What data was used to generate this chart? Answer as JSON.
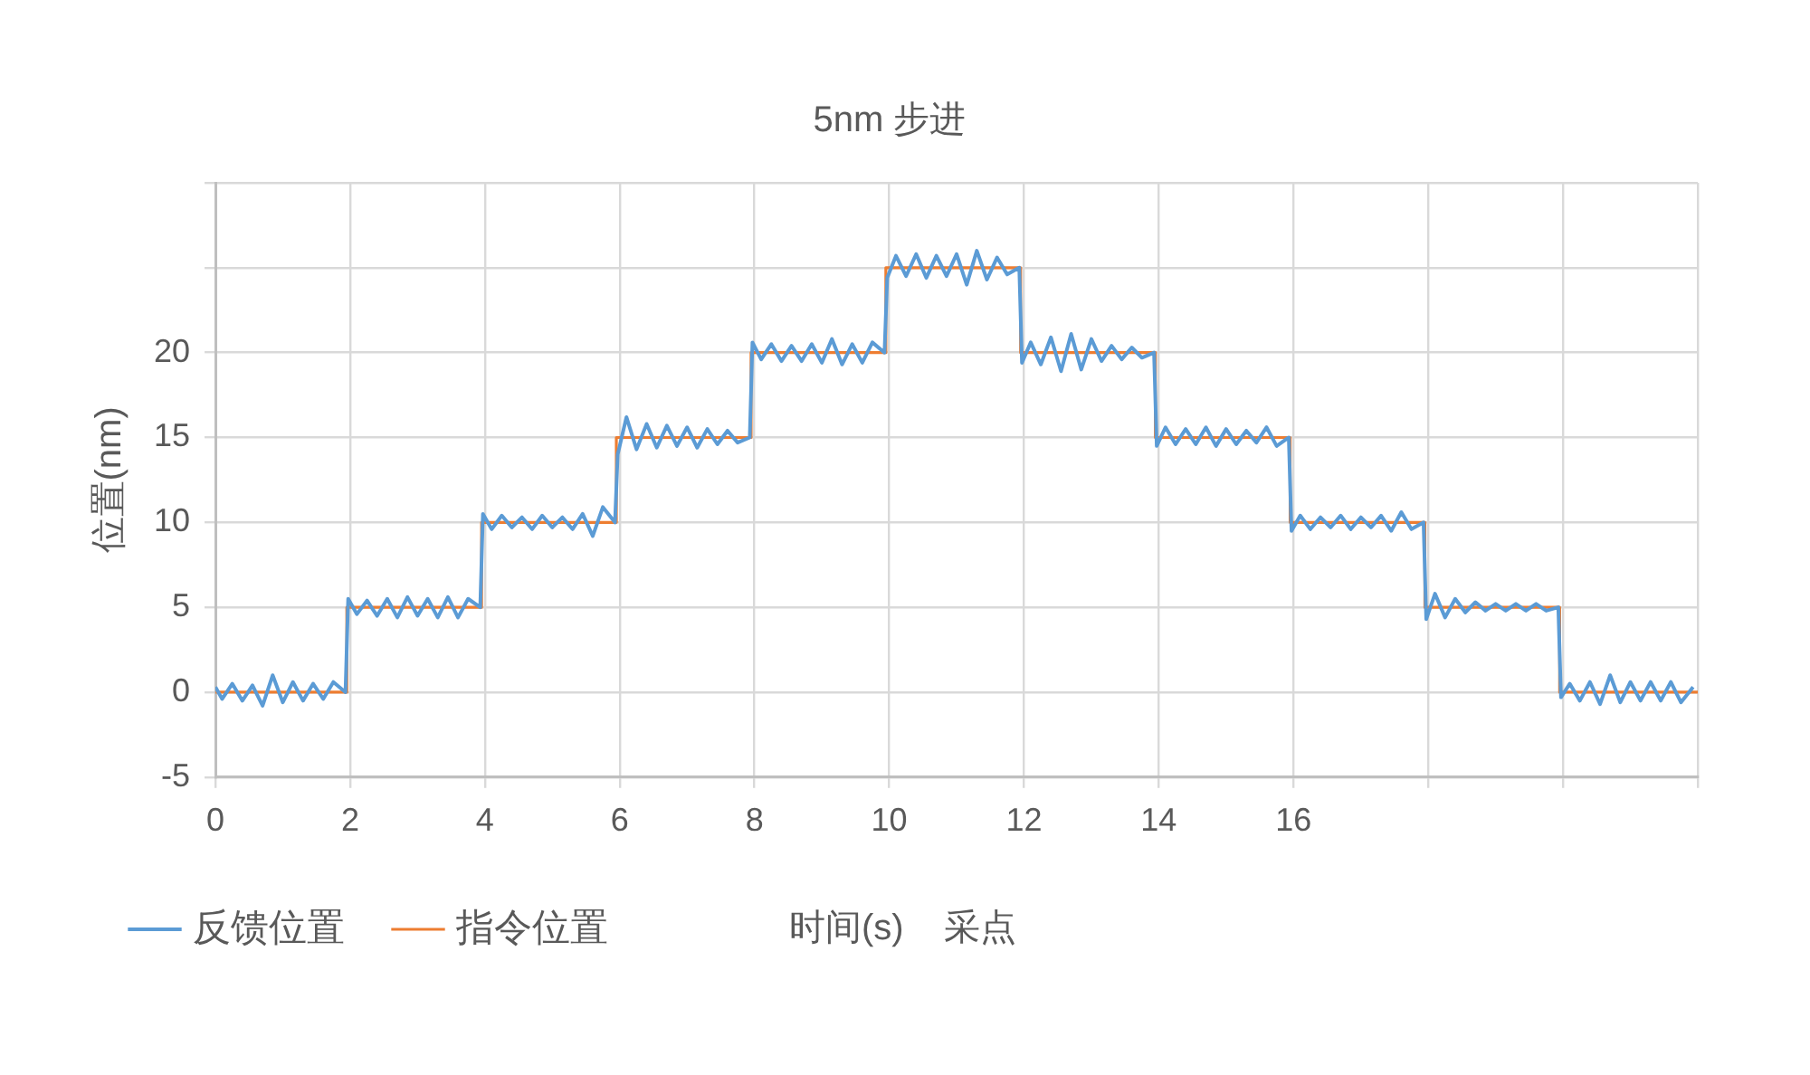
{
  "chart_data": {
    "type": "line",
    "title": "5nm 步进",
    "xlabel": "时间(s)    采点",
    "ylabel": "位置(nm)",
    "xlim": [
      0,
      22
    ],
    "xticks": [
      0,
      2,
      4,
      6,
      8,
      10,
      12,
      14,
      16,
      {
        "value": 18,
        "label": null
      },
      {
        "value": 20,
        "label": null
      },
      {
        "value": 22,
        "label": null
      }
    ],
    "ylim": [
      -5,
      30
    ],
    "yticks": [
      -5,
      0,
      5,
      10,
      15,
      20,
      {
        "value": 25,
        "label": null
      },
      {
        "value": 30,
        "label": null
      }
    ],
    "grid": true,
    "legend": "bottom",
    "marker": "none",
    "series": [
      {
        "name": "反馈位置",
        "type": "line",
        "color": "#5b9bd5",
        "x": [
          0,
          0.1,
          0.25,
          0.4,
          0.55,
          0.7,
          0.85,
          1,
          1.15,
          1.3,
          1.45,
          1.6,
          1.75,
          1.93,
          1.97,
          2.1,
          2.25,
          2.4,
          2.55,
          2.7,
          2.85,
          3,
          3.15,
          3.3,
          3.45,
          3.6,
          3.75,
          3.93,
          3.97,
          4.1,
          4.25,
          4.4,
          4.55,
          4.7,
          4.85,
          5,
          5.15,
          5.3,
          5.45,
          5.6,
          5.75,
          5.93,
          5.97,
          6.1,
          6.25,
          6.4,
          6.55,
          6.7,
          6.85,
          7,
          7.15,
          7.3,
          7.45,
          7.6,
          7.75,
          7.93,
          7.97,
          8.1,
          8.25,
          8.4,
          8.55,
          8.7,
          8.85,
          9,
          9.15,
          9.3,
          9.45,
          9.6,
          9.75,
          9.93,
          9.97,
          10.1,
          10.25,
          10.4,
          10.55,
          10.7,
          10.85,
          11,
          11.15,
          11.3,
          11.45,
          11.6,
          11.75,
          11.93,
          11.97,
          12.1,
          12.25,
          12.4,
          12.55,
          12.7,
          12.85,
          13,
          13.15,
          13.3,
          13.45,
          13.6,
          13.75,
          13.93,
          13.97,
          14.1,
          14.25,
          14.4,
          14.55,
          14.7,
          14.85,
          15,
          15.15,
          15.3,
          15.45,
          15.6,
          15.75,
          15.93,
          15.97,
          16.1,
          16.25,
          16.4,
          16.55,
          16.7,
          16.85,
          17,
          17.15,
          17.3,
          17.45,
          17.6,
          17.75,
          17.93,
          17.97,
          18.1,
          18.25,
          18.4,
          18.55,
          18.7,
          18.85,
          19,
          19.15,
          19.3,
          19.45,
          19.6,
          19.75,
          19.93,
          19.97,
          20.1,
          20.25,
          20.4,
          20.55,
          20.7,
          20.85,
          21,
          21.15,
          21.3,
          21.45,
          21.6,
          21.75,
          21.93
        ],
        "values": [
          0.3,
          -0.4,
          0.5,
          -0.5,
          0.4,
          -0.8,
          1.0,
          -0.6,
          0.6,
          -0.5,
          0.5,
          -0.4,
          0.6,
          0,
          5.5,
          4.6,
          5.4,
          4.5,
          5.5,
          4.4,
          5.6,
          4.5,
          5.5,
          4.4,
          5.6,
          4.4,
          5.5,
          5.0,
          10.5,
          9.6,
          10.4,
          9.7,
          10.3,
          9.6,
          10.4,
          9.7,
          10.3,
          9.6,
          10.5,
          9.2,
          10.9,
          10.0,
          14.0,
          16.2,
          14.3,
          15.8,
          14.4,
          15.7,
          14.5,
          15.6,
          14.4,
          15.5,
          14.6,
          15.4,
          14.7,
          15.0,
          20.6,
          19.6,
          20.5,
          19.5,
          20.4,
          19.5,
          20.5,
          19.4,
          20.8,
          19.3,
          20.5,
          19.4,
          20.6,
          20.0,
          24.4,
          25.7,
          24.5,
          25.8,
          24.4,
          25.7,
          24.5,
          25.8,
          24.0,
          26.0,
          24.3,
          25.6,
          24.6,
          25.0,
          19.4,
          20.6,
          19.3,
          20.9,
          18.9,
          21.1,
          19.0,
          20.8,
          19.5,
          20.4,
          19.6,
          20.3,
          19.7,
          20.0,
          14.5,
          15.6,
          14.6,
          15.5,
          14.6,
          15.6,
          14.5,
          15.5,
          14.6,
          15.4,
          14.7,
          15.6,
          14.5,
          15.0,
          9.5,
          10.4,
          9.6,
          10.3,
          9.7,
          10.4,
          9.6,
          10.3,
          9.7,
          10.4,
          9.5,
          10.6,
          9.6,
          10.0,
          4.3,
          5.8,
          4.4,
          5.5,
          4.7,
          5.3,
          4.8,
          5.2,
          4.8,
          5.2,
          4.8,
          5.2,
          4.8,
          5.0,
          -0.3,
          0.5,
          -0.5,
          0.6,
          -0.7,
          1.0,
          -0.6,
          0.6,
          -0.5,
          0.6,
          -0.5,
          0.6,
          -0.6,
          0.3
        ]
      },
      {
        "name": "指令位置",
        "type": "step",
        "color": "#ed7d31",
        "x": [
          0,
          1.95,
          3.95,
          5.95,
          7.95,
          9.95,
          11.95,
          13.95,
          15.95,
          17.95,
          19.95,
          22
        ],
        "values": [
          0,
          5,
          10,
          15,
          20,
          25,
          20,
          15,
          10,
          5,
          0,
          0
        ]
      }
    ]
  }
}
